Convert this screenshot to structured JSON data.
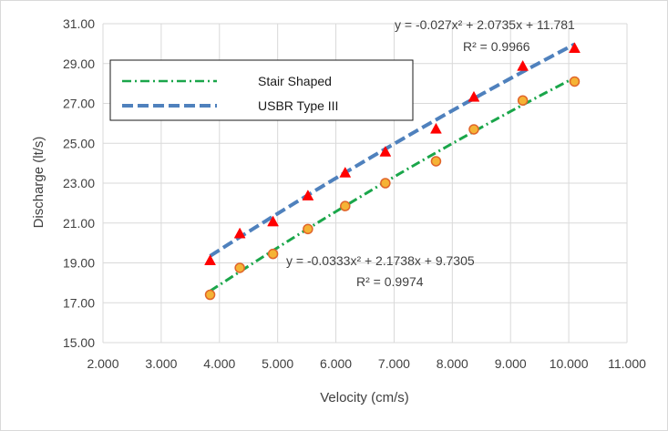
{
  "chart_data": {
    "type": "scatter",
    "xlabel": "Velocity (cm/s)",
    "ylabel": "Discharge (lt/s)",
    "xlim": [
      2.0,
      11.0
    ],
    "ylim": [
      15.0,
      31.0
    ],
    "x_ticks": [
      2.0,
      3.0,
      4.0,
      5.0,
      6.0,
      7.0,
      8.0,
      9.0,
      10.0,
      11.0
    ],
    "x_tick_labels": [
      "2.000",
      "3.000",
      "4.000",
      "5.000",
      "6.000",
      "7.000",
      "8.000",
      "9.000",
      "10.000",
      "11.000"
    ],
    "y_ticks": [
      15,
      17,
      19,
      21,
      23,
      25,
      27,
      29,
      31
    ],
    "y_tick_labels": [
      "15.00",
      "17.00",
      "19.00",
      "21.00",
      "23.00",
      "25.00",
      "27.00",
      "29.00",
      "31.00"
    ],
    "grid": true,
    "legend_position": "top-left",
    "series": [
      {
        "name": "Stair Shaped",
        "marker": "circle",
        "marker_color": "#f5b335",
        "marker_edge": "#e0652a",
        "trend_color": "#1aa64a",
        "trend_style": "dash-dot",
        "x": [
          3.84,
          4.35,
          4.92,
          5.52,
          6.16,
          6.85,
          7.72,
          8.37,
          9.21,
          10.1
        ],
        "y": [
          17.4,
          18.75,
          19.45,
          20.7,
          21.85,
          23.0,
          24.1,
          25.7,
          27.15,
          28.1
        ],
        "trend": {
          "a": -0.0333,
          "b": 2.1738,
          "c": 9.7305
        },
        "equation": "y = -0.0333x² + 2.1738x + 9.7305",
        "r2": "R² = 0.9974"
      },
      {
        "name": "USBR Type III",
        "marker": "triangle",
        "marker_color": "#ff0000",
        "trend_color": "#4f81bd",
        "trend_style": "dash",
        "x": [
          3.84,
          4.35,
          4.92,
          5.52,
          6.16,
          6.85,
          7.72,
          8.37,
          9.21,
          10.1
        ],
        "y": [
          19.15,
          20.5,
          21.1,
          22.4,
          23.55,
          24.6,
          25.75,
          27.35,
          28.9,
          29.8
        ],
        "trend": {
          "a": -0.027,
          "b": 2.0735,
          "c": 11.781
        },
        "equation": "y = -0.027x² + 2.0735x + 11.781",
        "r2": "R² = 0.9966"
      }
    ]
  }
}
